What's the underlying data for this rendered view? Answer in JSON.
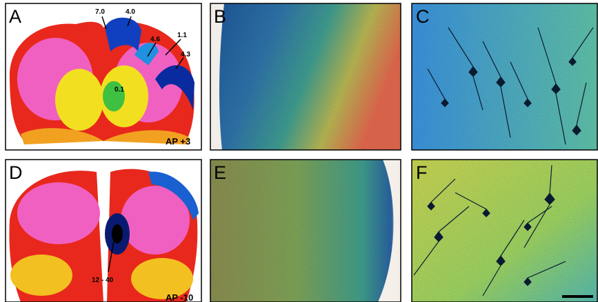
{
  "panels": [
    {
      "letter": "A",
      "caption": "AP +3",
      "annotations": [
        "7.0",
        "4.0",
        "4.6",
        "1.1",
        "4.3",
        "0.1"
      ]
    },
    {
      "letter": "B"
    },
    {
      "letter": "C"
    },
    {
      "letter": "D",
      "caption": "AP -10",
      "annotations": [
        "12 - 40"
      ]
    },
    {
      "letter": "E"
    },
    {
      "letter": "F"
    }
  ]
}
